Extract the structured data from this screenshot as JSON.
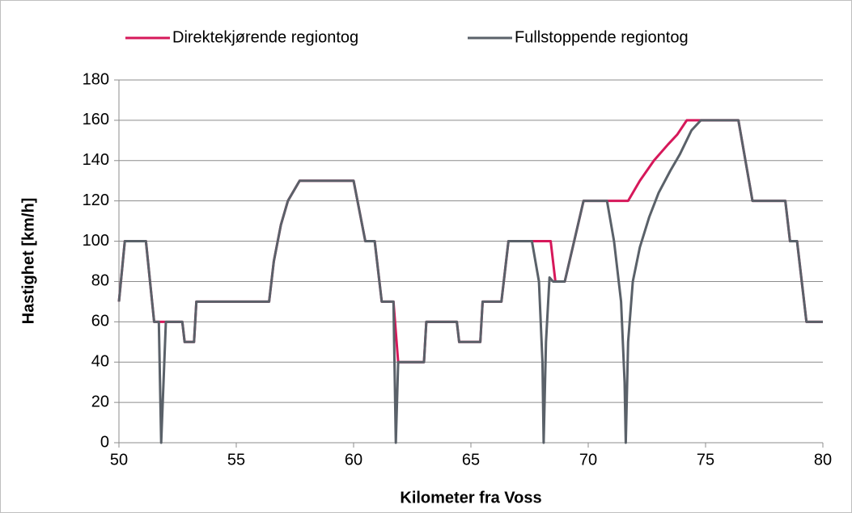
{
  "chart_data": {
    "type": "line",
    "x_label": "Kilometer fra Voss",
    "y_label": "Hastighet [km/h]",
    "xlim": [
      50,
      80
    ],
    "xticks": [
      50,
      55,
      60,
      65,
      70,
      75,
      80
    ],
    "ylim": [
      0,
      180
    ],
    "yticks": [
      0,
      20,
      40,
      60,
      80,
      100,
      120,
      140,
      160,
      180
    ],
    "grid": true,
    "legend": "top",
    "series": [
      {
        "name": "Direktekjørende regiontog",
        "color": "#d6185a",
        "x": [
          50,
          50.25,
          51.15,
          51.5,
          52.7,
          52.8,
          53.2,
          53.3,
          56.4,
          56.6,
          56.9,
          57.2,
          57.7,
          60.0,
          60.5,
          60.9,
          61.2,
          61.7,
          61.9,
          63.0,
          63.1,
          64.4,
          64.5,
          65.4,
          65.5,
          66.3,
          66.6,
          68.4,
          68.6,
          69.0,
          69.8,
          71.7,
          72.2,
          72.8,
          73.4,
          73.8,
          74.2,
          76.4,
          77.0,
          78.4,
          78.6,
          78.9,
          79.3,
          80
        ],
        "values": [
          70,
          100,
          100,
          60,
          60,
          50,
          50,
          70,
          70,
          90,
          108,
          120,
          130,
          130,
          100,
          100,
          70,
          70,
          40,
          40,
          60,
          60,
          50,
          50,
          70,
          70,
          100,
          100,
          80,
          80,
          120,
          120,
          130,
          140,
          148,
          153,
          160,
          160,
          120,
          120,
          100,
          100,
          60,
          60
        ]
      },
      {
        "name": "Fullstoppende regiontog",
        "color": "#5a6169",
        "x": [
          50,
          50.25,
          51.15,
          51.5,
          51.7,
          51.8,
          52.0,
          52.7,
          52.8,
          53.2,
          53.3,
          56.4,
          56.6,
          56.9,
          57.2,
          57.7,
          60.0,
          60.5,
          60.9,
          61.2,
          61.7,
          61.8,
          61.9,
          63.0,
          63.1,
          64.4,
          64.5,
          65.4,
          65.5,
          66.3,
          66.6,
          67.6,
          67.9,
          68.05,
          68.1,
          68.2,
          68.35,
          68.5,
          69.0,
          69.8,
          70.8,
          71.1,
          71.4,
          71.55,
          71.6,
          71.7,
          71.9,
          72.2,
          72.6,
          73.0,
          73.5,
          73.9,
          74.4,
          74.8,
          76.4,
          77.0,
          78.4,
          78.6,
          78.9,
          79.3,
          80
        ],
        "values": [
          70,
          100,
          100,
          60,
          60,
          0,
          60,
          60,
          50,
          50,
          70,
          70,
          90,
          108,
          120,
          130,
          130,
          100,
          100,
          70,
          70,
          0,
          40,
          40,
          60,
          60,
          50,
          50,
          70,
          70,
          100,
          100,
          80,
          40,
          0,
          50,
          82,
          80,
          80,
          120,
          120,
          100,
          70,
          30,
          0,
          50,
          80,
          97,
          112,
          124,
          135,
          143,
          155,
          160,
          160,
          120,
          120,
          100,
          100,
          60,
          60
        ]
      }
    ]
  }
}
